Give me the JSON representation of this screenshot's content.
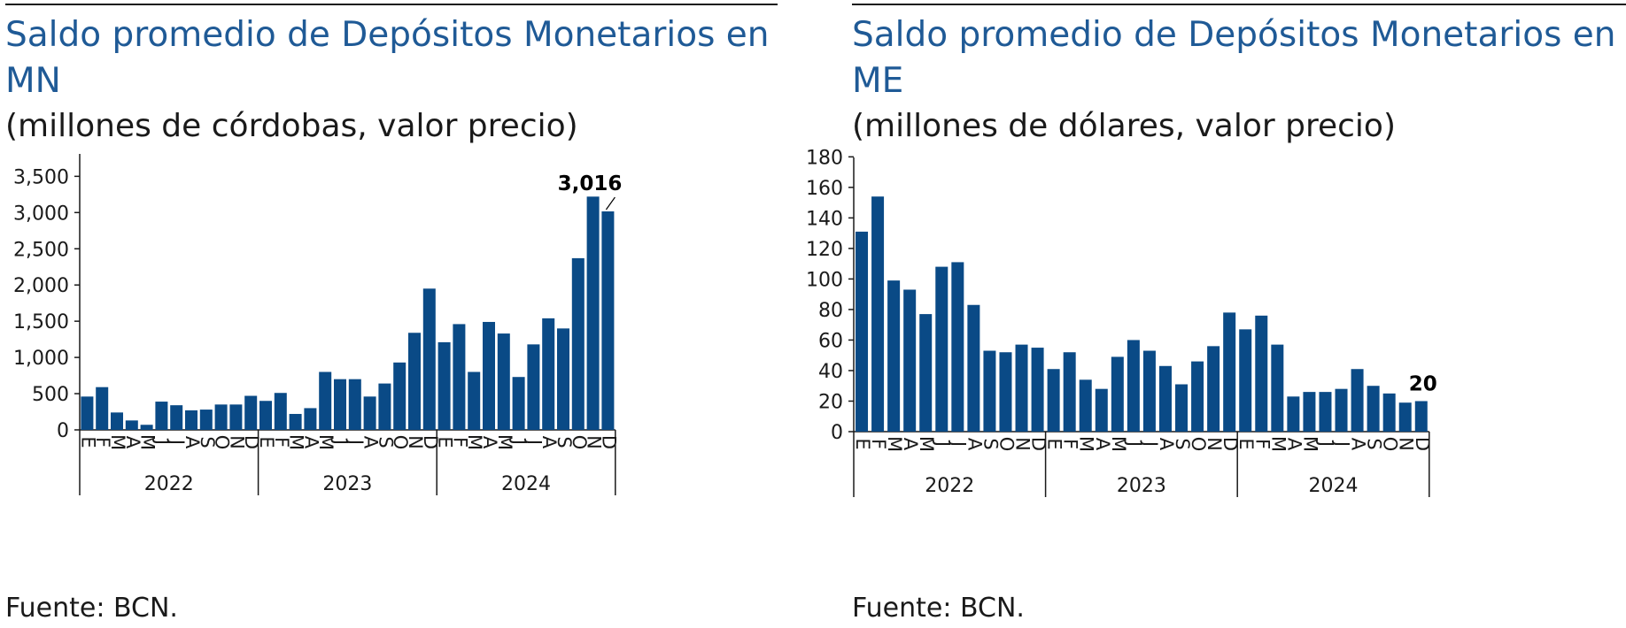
{
  "colors": {
    "bar": "#0a4a86",
    "title": "#1f5a96",
    "axis": "#1a1a1a"
  },
  "chart_data": [
    {
      "type": "bar",
      "title": "Saldo promedio de Depósitos Monetarios en MN",
      "subtitle": "(millones de córdobas, valor precio)",
      "source": "Fuente: BCN.",
      "categories": [
        "E",
        "F",
        "M",
        "A",
        "M",
        "J",
        "J",
        "A",
        "S",
        "O",
        "N",
        "D",
        "E",
        "F",
        "M",
        "A",
        "M",
        "J",
        "J",
        "A",
        "S",
        "O",
        "N",
        "D",
        "E",
        "F",
        "M",
        "A",
        "M",
        "J",
        "J",
        "A",
        "S",
        "O",
        "N",
        "D"
      ],
      "years": [
        "2022",
        "2023",
        "2024"
      ],
      "values": [
        460,
        590,
        240,
        130,
        70,
        390,
        340,
        270,
        280,
        350,
        350,
        470,
        400,
        510,
        220,
        300,
        800,
        700,
        700,
        460,
        640,
        930,
        1340,
        1950,
        1210,
        1460,
        800,
        1490,
        1330,
        730,
        1180,
        1540,
        1400,
        2370,
        3220,
        3016
      ],
      "ylim": [
        0,
        3700
      ],
      "yticks": [
        0,
        500,
        1000,
        1500,
        2000,
        2500,
        3000,
        3500
      ],
      "ytick_labels": [
        "0",
        "500",
        "1,000",
        "1,500",
        "2,000",
        "2,500",
        "3,000",
        "3,500"
      ],
      "data_labels": [
        {
          "index": 35,
          "text": "3,016"
        }
      ],
      "grid": false,
      "legend": "none"
    },
    {
      "type": "bar",
      "title": "Saldo promedio de Depósitos Monetarios en ME",
      "subtitle": "(millones de dólares, valor precio)",
      "source": "Fuente: BCN.",
      "categories": [
        "E",
        "F",
        "M",
        "A",
        "M",
        "J",
        "J",
        "A",
        "S",
        "O",
        "N",
        "D",
        "E",
        "F",
        "M",
        "A",
        "M",
        "J",
        "J",
        "A",
        "S",
        "O",
        "N",
        "D",
        "E",
        "F",
        "M",
        "A",
        "M",
        "J",
        "J",
        "A",
        "S",
        "O",
        "N",
        "D"
      ],
      "years": [
        "2022",
        "2023",
        "2024"
      ],
      "values": [
        131,
        154,
        99,
        93,
        77,
        108,
        111,
        83,
        53,
        52,
        57,
        55,
        41,
        52,
        34,
        28,
        49,
        60,
        53,
        43,
        31,
        46,
        56,
        78,
        67,
        76,
        57,
        23,
        26,
        26,
        28,
        41,
        30,
        25,
        19,
        20
      ],
      "ylim": [
        0,
        180
      ],
      "yticks": [
        0,
        20,
        40,
        60,
        80,
        100,
        120,
        140,
        160,
        180
      ],
      "ytick_labels": [
        "0",
        "20",
        "40",
        "60",
        "80",
        "100",
        "120",
        "140",
        "160",
        "180"
      ],
      "data_labels": [
        {
          "index": 35,
          "text": "20"
        }
      ],
      "grid": false,
      "legend": "none"
    }
  ]
}
